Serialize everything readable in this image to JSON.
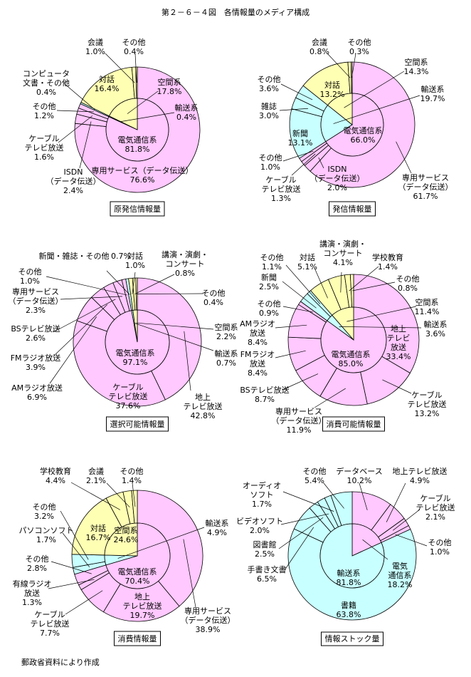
{
  "title": "第２－６－４図　各情報量のメディア構成",
  "source": "郵政省資料により作成",
  "chart_data": [
    {
      "type": "pie",
      "title": "原発信情報量",
      "rings": [
        {
          "categories": [
            "電気通信系",
            "輸送系",
            "空間系"
          ],
          "values": [
            81.8,
            0.4,
            17.8
          ],
          "value_labels": [
            "81.8%",
            "0.4%",
            "17.8%"
          ],
          "colors": [
            "#ffc8ff",
            "#c8ffff",
            "#ffffb4"
          ]
        },
        {
          "categories": [
            "専用サービス（データ伝送）",
            "ISDN\n（データ伝送）",
            "ケーブル\nテレビ放送",
            "その他",
            "コンピュータ\n文書・その他",
            "対話",
            "会議",
            "その他"
          ],
          "values": [
            76.6,
            2.4,
            1.6,
            1.2,
            0.4,
            16.4,
            1.0,
            0.4
          ],
          "value_labels": [
            "76.6%",
            "2.4%",
            "1.6%",
            "1.2%",
            "0.4%",
            "16.4%",
            "1.0%",
            "0.4%"
          ],
          "colors": [
            "#ffc8ff",
            "#ffc8ff",
            "#ffc8ff",
            "#ffc8ff",
            "#c8ffff",
            "#ffffb4",
            "#ffffb4",
            "#ffffb4"
          ]
        }
      ]
    },
    {
      "type": "pie",
      "title": "発信情報量",
      "rings": [
        {
          "categories": [
            "電気通信系",
            "輸送系",
            "空間系"
          ],
          "values": [
            66.0,
            19.7,
            14.3
          ],
          "value_labels": [
            "66.0%",
            "19.7%",
            "14.3%"
          ],
          "colors": [
            "#ffc8ff",
            "#c8ffff",
            "#ffffb4"
          ]
        },
        {
          "categories": [
            "専用サービス\n（データ伝送）",
            "ISDN\n（データ伝送）",
            "ケーブル\nテレビ放送",
            "その他",
            "新聞",
            "雑誌",
            "その他",
            "対話",
            "会議",
            "その他"
          ],
          "values": [
            61.7,
            2.0,
            1.3,
            1.0,
            13.1,
            3.0,
            3.6,
            13.2,
            0.8,
            0.3
          ],
          "value_labels": [
            "61.7%",
            "2.0%",
            "1.3%",
            "1.0%",
            "13.1%",
            "3.0%",
            "3.6%",
            "13.2%",
            "0.8%",
            "0.3%"
          ],
          "colors": [
            "#ffc8ff",
            "#ffc8ff",
            "#ffc8ff",
            "#ffc8ff",
            "#c8ffff",
            "#c8ffff",
            "#c8ffff",
            "#ffffb4",
            "#ffffb4",
            "#ffffb4"
          ]
        }
      ]
    },
    {
      "type": "pie",
      "title": "選択可能情報量",
      "rings": [
        {
          "categories": [
            "電気通信系",
            "輸送系",
            "空間系"
          ],
          "values": [
            97.1,
            0.7,
            2.2
          ],
          "value_labels": [
            "97.1%",
            "0.7%",
            "2.2%"
          ],
          "colors": [
            "#ffc8ff",
            "#c8ffff",
            "#ffffb4"
          ]
        },
        {
          "categories": [
            "地上\nテレビ放送",
            "ケーブル\nテレビ放送",
            "AMラジオ放送",
            "FMラジオ放送",
            "BSテレビ放送",
            "専用サービス\n（データ伝送）",
            "その他",
            "新聞・雑誌・その他",
            "対話",
            "講演・演劇・\nコンサート",
            "その他"
          ],
          "values": [
            42.8,
            37.6,
            6.9,
            3.9,
            2.6,
            2.3,
            1.0,
            0.7,
            1.0,
            0.8,
            0.4
          ],
          "value_labels": [
            "42.8%",
            "37.6%",
            "6.9%",
            "3.9%",
            "2.6%",
            "2.3%",
            "1.0%",
            "0.7%",
            "1.0%",
            "0.8%",
            "0.4%"
          ],
          "colors": [
            "#ffc8ff",
            "#ffc8ff",
            "#ffc8ff",
            "#ffc8ff",
            "#ffc8ff",
            "#ffc8ff",
            "#ffc8ff",
            "#c8ffff",
            "#ffffb4",
            "#ffffb4",
            "#ffffb4"
          ]
        }
      ]
    },
    {
      "type": "pie",
      "title": "消費可能情報量",
      "rings": [
        {
          "categories": [
            "電気通信系",
            "輸送系",
            "空間系"
          ],
          "values": [
            85.0,
            3.6,
            11.4
          ],
          "value_labels": [
            "85.0%",
            "3.6%",
            "11.4%"
          ],
          "colors": [
            "#ffc8ff",
            "#c8ffff",
            "#ffffb4"
          ]
        },
        {
          "categories": [
            "地上\nテレビ\n放送",
            "ケーブル\nテレビ放送",
            "専用サービス\n（データ伝送）",
            "BSテレビ放送",
            "FMラジオ\n放送",
            "AMラジオ\n放送",
            "その他",
            "新聞",
            "その他",
            "対話",
            "講演・演劇・\nコンサート",
            "学校教育",
            "その他"
          ],
          "values": [
            33.4,
            13.2,
            11.9,
            8.7,
            8.4,
            8.4,
            0.9,
            2.5,
            1.1,
            5.1,
            4.1,
            1.4,
            0.8
          ],
          "value_labels": [
            "33.4%",
            "13.2%",
            "11.9%",
            "8.7%",
            "8.4%",
            "8.4%",
            "0.9%",
            "2.5%",
            "1.1%",
            "5.1%",
            "4.1%",
            "1.4%",
            "0.8%"
          ],
          "colors": [
            "#ffc8ff",
            "#ffc8ff",
            "#ffc8ff",
            "#ffc8ff",
            "#ffc8ff",
            "#ffc8ff",
            "#ffc8ff",
            "#c8ffff",
            "#c8ffff",
            "#ffffb4",
            "#ffffb4",
            "#ffffb4",
            "#ffffb4"
          ]
        }
      ]
    },
    {
      "type": "pie",
      "title": "消費情報量",
      "rings": [
        {
          "categories": [
            "電気通信系",
            "輸送系",
            "空間系"
          ],
          "values": [
            70.4,
            4.9,
            24.6
          ],
          "value_labels": [
            "70.4%",
            "4.9%",
            "24.6%"
          ],
          "colors": [
            "#ffc8ff",
            "#c8ffff",
            "#ffffb4"
          ]
        },
        {
          "categories": [
            "専用サービス\n（データ伝送）",
            "地上\nテレビ放送",
            "ケーブル\nテレビ放送",
            "有線ラジオ\n放送",
            "その他",
            "パソコンソフト",
            "その他",
            "対話",
            "学校教育",
            "会議",
            "その他"
          ],
          "values": [
            38.9,
            19.7,
            7.7,
            1.3,
            2.8,
            1.7,
            3.2,
            16.7,
            4.4,
            2.1,
            1.4
          ],
          "value_labels": [
            "38.9%",
            "19.7%",
            "7.7%",
            "1.3%",
            "2.8%",
            "1.7%",
            "3.2%",
            "16.7%",
            "4.4%",
            "2.1%",
            "1.4%"
          ],
          "colors": [
            "#ffc8ff",
            "#ffc8ff",
            "#ffc8ff",
            "#ffc8ff",
            "#ffc8ff",
            "#c8ffff",
            "#c8ffff",
            "#ffffb4",
            "#ffffb4",
            "#ffffb4",
            "#ffffb4"
          ]
        }
      ]
    },
    {
      "type": "pie",
      "title": "情報ストック量",
      "rings": [
        {
          "categories": [
            "電気\n通信系",
            "輸送系"
          ],
          "values": [
            18.2,
            81.8
          ],
          "value_labels": [
            "18.2%",
            "81.8%"
          ],
          "colors": [
            "#ffc8ff",
            "#c8ffff"
          ]
        },
        {
          "categories": [
            "データベース",
            "地上テレビ放送",
            "ケーブル\nテレビ放送",
            "その他",
            "書籍",
            "手書き文書",
            "図書館",
            "ビデオソフト",
            "オーディオ\nソフト",
            "その他"
          ],
          "values": [
            10.2,
            4.9,
            2.1,
            1.0,
            63.8,
            6.5,
            2.5,
            2.0,
            1.7,
            5.4
          ],
          "value_labels": [
            "10.2%",
            "4.9%",
            "2.1%",
            "1.0%",
            "63.8%",
            "6.5%",
            "2.5%",
            "2.0%",
            "1.7%",
            "5.4%"
          ],
          "colors": [
            "#ffc8ff",
            "#ffc8ff",
            "#ffc8ff",
            "#ffc8ff",
            "#c8ffff",
            "#c8ffff",
            "#c8ffff",
            "#c8ffff",
            "#c8ffff",
            "#c8ffff"
          ]
        }
      ]
    }
  ]
}
